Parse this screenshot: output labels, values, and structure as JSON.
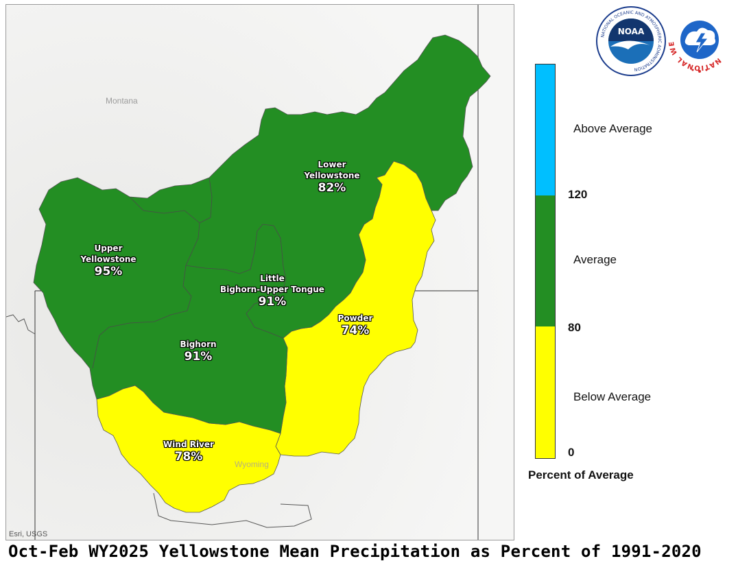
{
  "map": {
    "state_labels": {
      "montana": "Montana",
      "wyoming": "Wyoming"
    },
    "credit": "Esri, USGS",
    "basins": [
      {
        "id": "lower-yellowstone",
        "name_lines": [
          "Lower",
          "Yellowstone"
        ],
        "percent": "82%",
        "category": "Average",
        "color": "#238e23"
      },
      {
        "id": "upper-yellowstone",
        "name_lines": [
          "Upper",
          "Yellowstone"
        ],
        "percent": "95%",
        "category": "Average",
        "color": "#238e23"
      },
      {
        "id": "little-bighorn-upper-tongue",
        "name_lines": [
          "Little",
          "Bighorn-Upper Tongue"
        ],
        "percent": "91%",
        "category": "Average",
        "color": "#238e23"
      },
      {
        "id": "bighorn",
        "name_lines": [
          "Bighorn"
        ],
        "percent": "91%",
        "category": "Average",
        "color": "#238e23"
      },
      {
        "id": "powder",
        "name_lines": [
          "Powder"
        ],
        "percent": "74%",
        "category": "Below Average",
        "color": "#ffff00"
      },
      {
        "id": "wind-river",
        "name_lines": [
          "Wind River"
        ],
        "percent": "78%",
        "category": "Below Average",
        "color": "#ffff00"
      }
    ]
  },
  "legend": {
    "title": "Percent of Average",
    "categories": [
      {
        "label": "Above Average",
        "color": "#00bfff"
      },
      {
        "label": "Average",
        "color": "#238e23"
      },
      {
        "label": "Below Average",
        "color": "#ffff00"
      }
    ],
    "breaks": [
      "120",
      "80",
      "0"
    ]
  },
  "logos": {
    "noaa_center": "NOAA",
    "noaa_ring": "NATIONAL OCEANIC AND ATMOSPHERIC ADMINISTRATION",
    "noaa_sub": "U.S. DEPARTMENT OF COMMERCE",
    "nws_ring": "NATIONAL WEATHER SERVICE"
  },
  "caption": "Oct-Feb WY2025 Yellowstone Mean Precipitation as Percent of 1991-2020"
}
